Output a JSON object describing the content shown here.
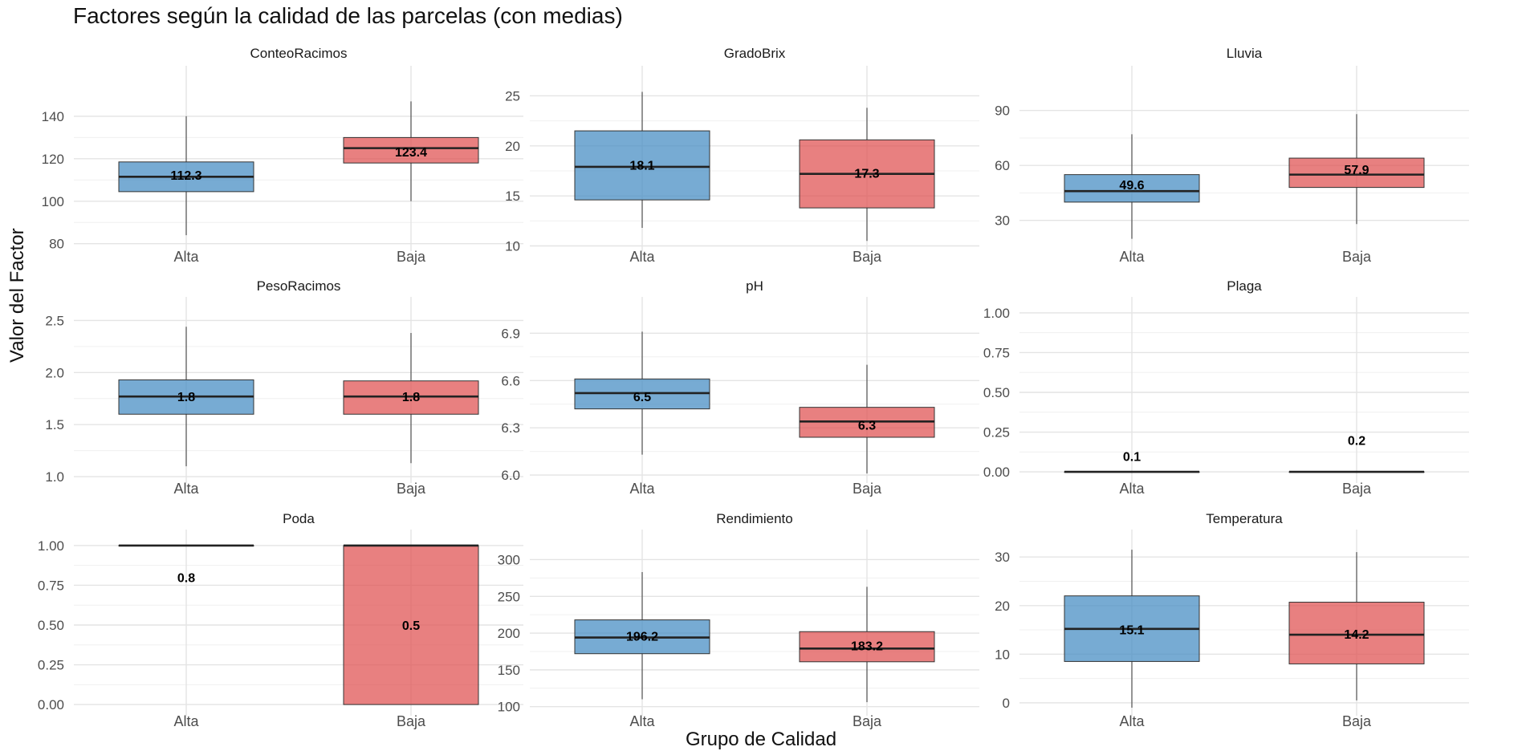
{
  "chart_data": {
    "type": "box",
    "title": "Factores según la calidad de las parcelas (con medias)",
    "xlabel": "Grupo de Calidad",
    "ylabel": "Valor del Factor",
    "categories": [
      "Alta",
      "Baja"
    ],
    "colors": {
      "Alta": "#4a8fc4",
      "Baja": "#e05555"
    },
    "panels": [
      {
        "name": "ConteoRacimos",
        "ylim": [
          78,
          160
        ],
        "ticks": [
          80,
          100,
          120,
          140
        ],
        "boxes": [
          {
            "group": "Alta",
            "min": 84,
            "q1": 104.5,
            "median": 111.5,
            "q3": 118.5,
            "max": 140,
            "mean": 112.3,
            "mean_label": "112.3"
          },
          {
            "group": "Baja",
            "min": 100,
            "q1": 118,
            "median": 125,
            "q3": 130,
            "max": 147,
            "mean": 123.4,
            "mean_label": "123.4"
          }
        ]
      },
      {
        "name": "GradoBrix",
        "ylim": [
          9.8,
          27.2
        ],
        "ticks": [
          10,
          15,
          20,
          25
        ],
        "boxes": [
          {
            "group": "Alta",
            "min": 11.8,
            "q1": 14.6,
            "median": 17.9,
            "q3": 21.5,
            "max": 25.4,
            "mean": 18.1,
            "mean_label": "18.1"
          },
          {
            "group": "Baja",
            "min": 10.5,
            "q1": 13.8,
            "median": 17.2,
            "q3": 20.6,
            "max": 23.8,
            "mean": 17.3,
            "mean_label": "17.3"
          }
        ]
      },
      {
        "name": "Lluvia",
        "ylim": [
          15,
          110
        ],
        "ticks": [
          30,
          60,
          90
        ],
        "boxes": [
          {
            "group": "Alta",
            "min": 20,
            "q1": 40,
            "median": 46,
            "q3": 55,
            "max": 77,
            "mean": 49.6,
            "mean_label": "49.6"
          },
          {
            "group": "Baja",
            "min": 28,
            "q1": 48,
            "median": 55,
            "q3": 64,
            "max": 88,
            "mean": 57.9,
            "mean_label": "57.9"
          }
        ]
      },
      {
        "name": "PesoRacimos",
        "ylim": [
          0.97,
          2.65
        ],
        "ticks": [
          1.0,
          1.5,
          2.0,
          2.5
        ],
        "tick_labels": [
          "1.0",
          "1.5",
          "2.0",
          "2.5"
        ],
        "boxes": [
          {
            "group": "Alta",
            "min": 1.1,
            "q1": 1.6,
            "median": 1.77,
            "q3": 1.93,
            "max": 2.44,
            "mean": 1.77,
            "mean_label": "1.8"
          },
          {
            "group": "Baja",
            "min": 1.13,
            "q1": 1.6,
            "median": 1.77,
            "q3": 1.92,
            "max": 2.38,
            "mean": 1.77,
            "mean_label": "1.8"
          }
        ]
      },
      {
        "name": "pH",
        "ylim": [
          5.97,
          7.08
        ],
        "ticks": [
          6.0,
          6.3,
          6.6,
          6.9
        ],
        "tick_labels": [
          "6.0",
          "6.3",
          "6.6",
          "6.9"
        ],
        "boxes": [
          {
            "group": "Alta",
            "min": 6.13,
            "q1": 6.42,
            "median": 6.52,
            "q3": 6.61,
            "max": 6.91,
            "mean": 6.5,
            "mean_label": "6.5"
          },
          {
            "group": "Baja",
            "min": 6.01,
            "q1": 6.24,
            "median": 6.34,
            "q3": 6.43,
            "max": 6.7,
            "mean": 6.32,
            "mean_label": "6.3"
          }
        ]
      },
      {
        "name": "Plaga",
        "ylim": [
          -0.05,
          1.05
        ],
        "ticks": [
          0.0,
          0.25,
          0.5,
          0.75,
          1.0
        ],
        "tick_labels": [
          "0.00",
          "0.25",
          "0.50",
          "0.75",
          "1.00"
        ],
        "boxes": [
          {
            "group": "Alta",
            "min": 0,
            "q1": 0,
            "median": 0,
            "q3": 0,
            "max": 0,
            "mean": 0.1,
            "mean_label": "0.1"
          },
          {
            "group": "Baja",
            "min": 0,
            "q1": 0,
            "median": 0,
            "q3": 0,
            "max": 0,
            "mean": 0.2,
            "mean_label": "0.2"
          }
        ]
      },
      {
        "name": "Poda",
        "ylim": [
          -0.05,
          1.05
        ],
        "ticks": [
          0.0,
          0.25,
          0.5,
          0.75,
          1.0
        ],
        "tick_labels": [
          "0.00",
          "0.25",
          "0.50",
          "0.75",
          "1.00"
        ],
        "boxes": [
          {
            "group": "Alta",
            "min": 1,
            "q1": 1,
            "median": 1,
            "q3": 1,
            "max": 1,
            "mean": 0.8,
            "mean_label": "0.8"
          },
          {
            "group": "Baja",
            "min": 0,
            "q1": 0,
            "median": 1,
            "q3": 1,
            "max": 1,
            "mean": 0.5,
            "mean_label": "0.5"
          }
        ]
      },
      {
        "name": "Rendimiento",
        "ylim": [
          92,
          330
        ],
        "ticks": [
          100,
          150,
          200,
          250,
          300
        ],
        "boxes": [
          {
            "group": "Alta",
            "min": 110,
            "q1": 172,
            "median": 194,
            "q3": 218,
            "max": 283,
            "mean": 196.2,
            "mean_label": "196.2"
          },
          {
            "group": "Baja",
            "min": 106,
            "q1": 161,
            "median": 179,
            "q3": 202,
            "max": 263,
            "mean": 183.2,
            "mean_label": "183.2"
          }
        ]
      },
      {
        "name": "Temperatura",
        "ylim": [
          -2,
          34
        ],
        "ticks": [
          0,
          10,
          20,
          30
        ],
        "boxes": [
          {
            "group": "Alta",
            "min": -1,
            "q1": 8.5,
            "median": 15.2,
            "q3": 22,
            "max": 31.5,
            "mean": 15.1,
            "mean_label": "15.1"
          },
          {
            "group": "Baja",
            "min": 0.5,
            "q1": 8,
            "median": 14,
            "q3": 20.7,
            "max": 31,
            "mean": 14.2,
            "mean_label": "14.2"
          }
        ]
      }
    ]
  }
}
